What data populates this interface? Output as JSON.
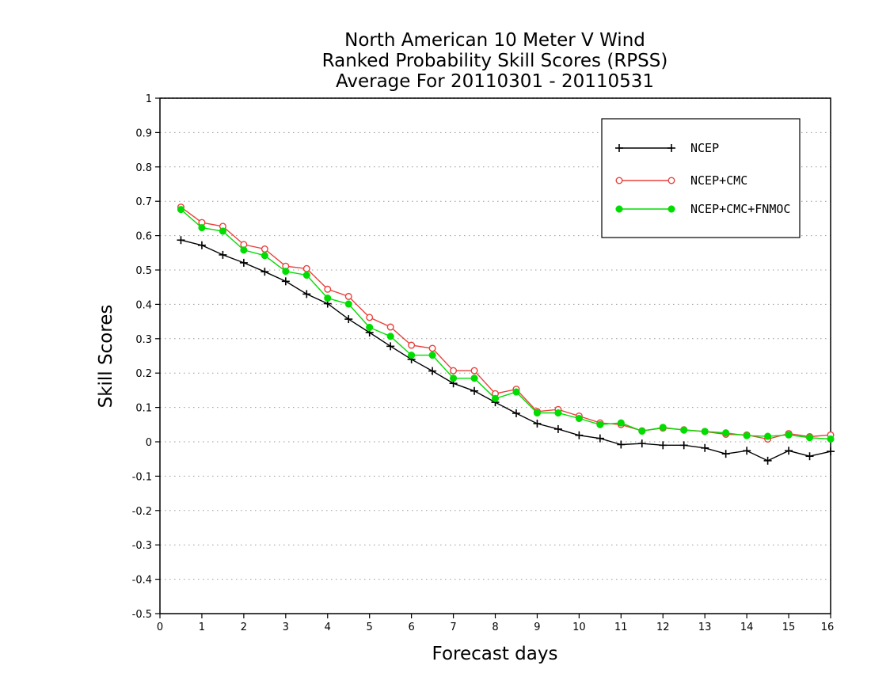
{
  "chart_data": {
    "type": "line",
    "title": [
      "North American 10 Meter V Wind",
      "Ranked Probability Skill Scores (RPSS)",
      "Average For 20110301 - 20110531"
    ],
    "xlabel": "Forecast days",
    "ylabel": "Skill Scores",
    "xlim": [
      0,
      16
    ],
    "ylim": [
      -0.5,
      1
    ],
    "xticks": [
      0,
      1,
      2,
      3,
      4,
      5,
      6,
      7,
      8,
      9,
      10,
      11,
      12,
      13,
      14,
      15,
      16
    ],
    "yticks": [
      -0.5,
      -0.4,
      -0.3,
      -0.2,
      -0.1,
      0,
      0.1,
      0.2,
      0.3,
      0.4,
      0.5,
      0.6,
      0.7,
      0.8,
      0.9,
      1
    ],
    "grid": true,
    "legend_position": "top-right",
    "x": [
      0.5,
      1,
      1.5,
      2,
      2.5,
      3,
      3.5,
      4,
      4.5,
      5,
      5.5,
      6,
      6.5,
      7,
      7.5,
      8,
      8.5,
      9,
      9.5,
      10,
      10.5,
      11,
      11.5,
      12,
      12.5,
      13,
      13.5,
      14,
      14.5,
      15,
      15.5,
      16
    ],
    "series": [
      {
        "name": "NCEP",
        "color": "#000000",
        "marker": "plus",
        "values": [
          0.587,
          0.572,
          0.544,
          0.521,
          0.495,
          0.467,
          0.43,
          0.402,
          0.357,
          0.318,
          0.278,
          0.24,
          0.206,
          0.17,
          0.148,
          0.115,
          0.083,
          0.053,
          0.037,
          0.019,
          0.01,
          -0.008,
          -0.005,
          -0.01,
          -0.01,
          -0.018,
          -0.035,
          -0.026,
          -0.055,
          -0.026,
          -0.042,
          -0.028
        ]
      },
      {
        "name": "NCEP+CMC",
        "color": "#e8413c",
        "marker": "open-circle",
        "values": [
          0.683,
          0.638,
          0.627,
          0.574,
          0.561,
          0.511,
          0.504,
          0.444,
          0.423,
          0.362,
          0.334,
          0.281,
          0.272,
          0.207,
          0.207,
          0.14,
          0.153,
          0.088,
          0.094,
          0.075,
          0.055,
          0.05,
          0.032,
          0.04,
          0.035,
          0.03,
          0.022,
          0.02,
          0.008,
          0.024,
          0.015,
          0.02
        ]
      },
      {
        "name": "NCEP+CMC+FNMOC",
        "color": "#00dd00",
        "marker": "filled-circle",
        "values": [
          0.676,
          0.623,
          0.613,
          0.558,
          0.542,
          0.496,
          0.485,
          0.418,
          0.401,
          0.333,
          0.307,
          0.252,
          0.252,
          0.185,
          0.185,
          0.126,
          0.145,
          0.084,
          0.084,
          0.068,
          0.05,
          0.055,
          0.031,
          0.042,
          0.034,
          0.03,
          0.026,
          0.018,
          0.016,
          0.02,
          0.012,
          0.008
        ]
      }
    ]
  }
}
